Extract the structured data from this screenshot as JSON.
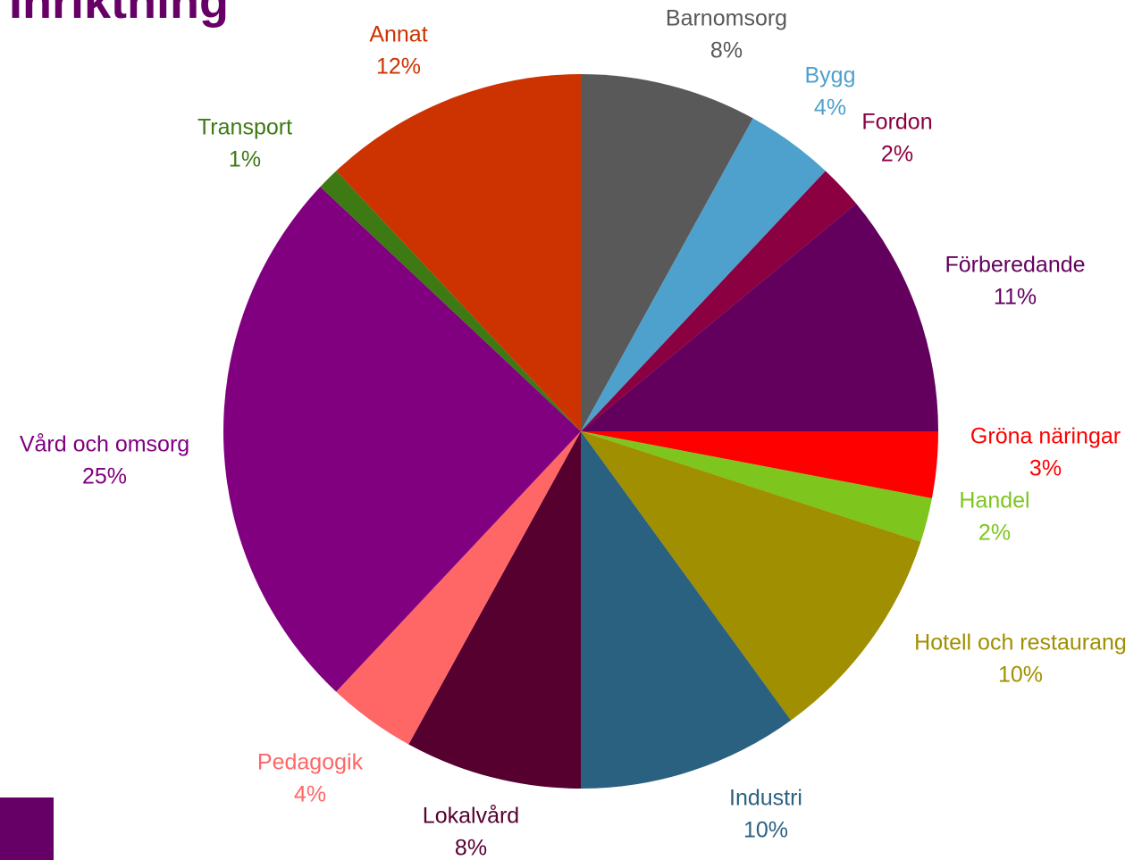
{
  "chart_data": {
    "type": "pie",
    "title": "Inriktning",
    "categories": [
      "Barnomsorg",
      "Bygg",
      "Fordon",
      "Förberedande",
      "Gröna näringar",
      "Handel",
      "Hotell och restaurang",
      "Industri",
      "Lokalvård",
      "Pedagogik",
      "Vård och omsorg",
      "Transport",
      "Annat"
    ],
    "values": [
      8,
      4,
      2,
      11,
      3,
      2,
      10,
      10,
      8,
      4,
      25,
      1,
      12
    ],
    "value_labels": [
      "8%",
      "4%",
      "2%",
      "11%",
      "3%",
      "2%",
      "10%",
      "10%",
      "8%",
      "4%",
      "25%",
      "1%",
      "12%"
    ],
    "colors": [
      "#595959",
      "#4ea1cc",
      "#8b0040",
      "#63005e",
      "#ff0000",
      "#7ec51d",
      "#a08f00",
      "#2b6180",
      "#560030",
      "#ff6666",
      "#800080",
      "#3d7a14",
      "#cc3300"
    ]
  }
}
